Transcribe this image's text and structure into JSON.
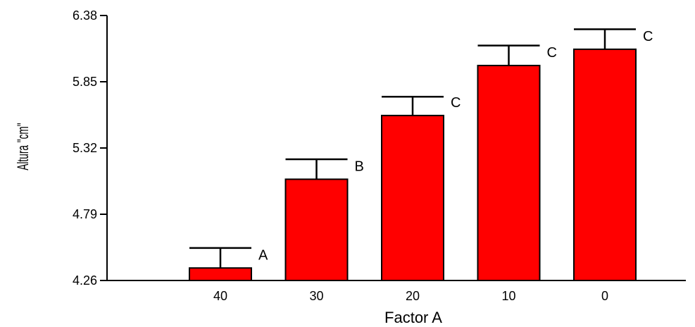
{
  "chart_data": {
    "type": "bar",
    "title": "",
    "xlabel": "Factor A",
    "ylabel": "Altura \"cm\"",
    "categories": [
      "40",
      "30",
      "20",
      "10",
      "0"
    ],
    "values": [
      4.36,
      5.07,
      5.58,
      5.98,
      6.11
    ],
    "error_upper": [
      4.52,
      5.23,
      5.73,
      6.14,
      6.27
    ],
    "significance_labels": [
      "A",
      "B",
      "C",
      "C",
      "C"
    ],
    "ylim": [
      4.26,
      6.38
    ],
    "yticks": [
      "4.26",
      "4.79",
      "5.32",
      "5.85",
      "6.38"
    ],
    "grid": false,
    "bar_color": "#ff0000"
  }
}
